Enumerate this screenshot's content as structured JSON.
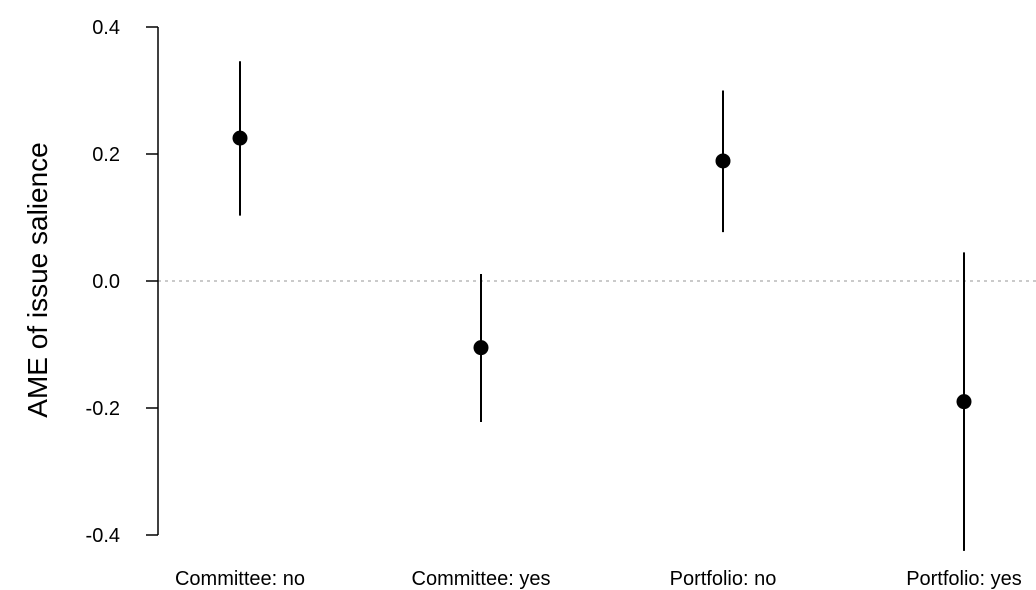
{
  "chart_data": {
    "type": "scatter",
    "subtype": "point-estimate-with-confidence-intervals",
    "title": "",
    "xlabel": "",
    "ylabel": "AME of issue salience",
    "ylim": [
      -0.4,
      0.4
    ],
    "yticks": [
      -0.4,
      -0.2,
      0.0,
      0.2,
      0.4
    ],
    "ytick_labels": [
      "-0.4",
      "-0.2",
      "0.0",
      "0.2",
      "0.4"
    ],
    "categories": [
      "Committee: no",
      "Committee: yes",
      "Portfolio: no",
      "Portfolio: yes"
    ],
    "points": [
      {
        "category": "Committee: no",
        "estimate": 0.225,
        "lower": 0.103,
        "upper": 0.346
      },
      {
        "category": "Committee: yes",
        "estimate": -0.105,
        "lower": -0.222,
        "upper": 0.011
      },
      {
        "category": "Portfolio: no",
        "estimate": 0.189,
        "lower": 0.077,
        "upper": 0.3
      },
      {
        "category": "Portfolio: yes",
        "estimate": -0.19,
        "lower": -0.425,
        "upper": 0.045
      }
    ],
    "reference_line": {
      "y": 0.0,
      "style": "dotted",
      "color": "#aaaaaa"
    },
    "grid": false,
    "legend": "none",
    "colors": {
      "point": "#000000",
      "interval": "#000000",
      "axis": "#000000"
    }
  }
}
